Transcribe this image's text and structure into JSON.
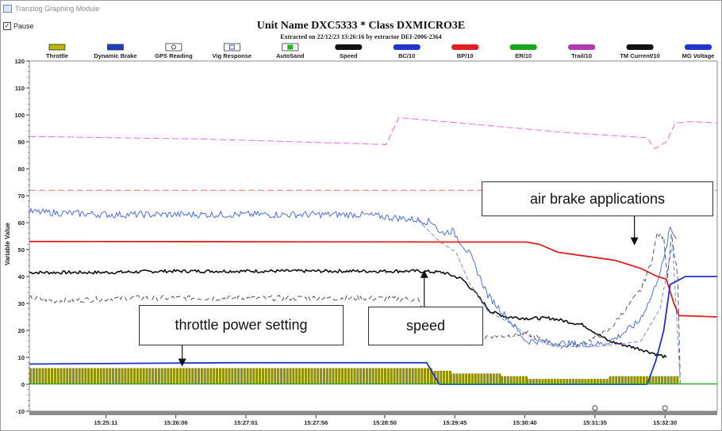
{
  "window": {
    "title": "Tranzlog Graphing Module",
    "pause_label": "Pause",
    "pause_checked": "✓"
  },
  "chart_data": {
    "type": "line",
    "title": "Unit Name DXC5333  * Class  DXMICRO3E",
    "subtitle": "Extracted on 22/12/23 13:26:16  by extractor DEI-2006-2364",
    "ylabel": "Variable Value",
    "xlabel": "",
    "ylim": [
      -10,
      120
    ],
    "yticks": [
      "-10",
      "0",
      "10",
      "20",
      "30",
      "40",
      "50",
      "60",
      "70",
      "80",
      "90",
      "100",
      "110",
      "120"
    ],
    "xticks": [
      "15:25:11",
      "15:26:06",
      "15:27:01",
      "15:27:56",
      "15:28:50",
      "15:29:45",
      "15:30:40",
      "15:31:35",
      "15:32:30"
    ],
    "xtick_seconds": [
      0,
      55,
      110,
      165,
      219,
      274,
      329,
      384,
      439
    ],
    "xlim_seconds": [
      -60,
      480
    ],
    "grid": "horizontal",
    "legend_position": "top",
    "legend": [
      {
        "name": "Throttle",
        "color": "#b8b800",
        "kind": "bar"
      },
      {
        "name": "Dynamic Brake",
        "color": "#1f3fbf",
        "kind": "bar"
      },
      {
        "name": "GPS Reading",
        "color": "#444444",
        "kind": "circle"
      },
      {
        "name": "Vig Response",
        "color": "#3a5bd9",
        "kind": "square"
      },
      {
        "name": "AutoSand",
        "color": "#1db51d",
        "kind": "square"
      },
      {
        "name": "Speed",
        "color": "#111111",
        "kind": "line"
      },
      {
        "name": "BC/10",
        "color": "#2233cc",
        "kind": "line"
      },
      {
        "name": "BP/10",
        "color": "#e02020",
        "kind": "line"
      },
      {
        "name": "ER/10",
        "color": "#1aa61a",
        "kind": "line"
      },
      {
        "name": "Trail/10",
        "color": "#b03ab0",
        "kind": "line"
      },
      {
        "name": "TM Current/10",
        "color": "#111111",
        "kind": "line"
      },
      {
        "name": "MG Voltage",
        "color": "#2233cc",
        "kind": "line"
      }
    ],
    "series": [
      {
        "name": "Speed",
        "color": "#111111",
        "dash": "",
        "width": 1.6,
        "noise": 0.6,
        "x": [
          -60,
          0,
          50,
          100,
          150,
          200,
          245,
          265,
          280,
          290,
          302,
          315,
          330,
          350,
          375,
          395,
          420,
          440
        ],
        "y": [
          41.5,
          41.5,
          42,
          42,
          42,
          42,
          42,
          41.5,
          39,
          34,
          27,
          25,
          24.5,
          24.5,
          22,
          16,
          13,
          10
        ]
      },
      {
        "name": "TM Current/10",
        "color": "#555555",
        "dash": "6,4",
        "width": 1,
        "noise": 1.0,
        "x": [
          -60,
          -40,
          20,
          80,
          140,
          200,
          245,
          250,
          262,
          265,
          272,
          276,
          290,
          300,
          315,
          330,
          355,
          375,
          395,
          420,
          428,
          433,
          438,
          441,
          444,
          449,
          451
        ],
        "y": [
          32,
          31,
          32,
          32,
          32,
          32,
          31.5,
          26,
          23,
          18,
          20,
          16,
          15,
          18,
          18,
          19,
          14,
          15,
          20,
          35,
          45,
          56,
          54,
          40,
          56,
          40,
          0
        ]
      },
      {
        "name": "Vig Response",
        "color": "#4a6ff0",
        "dash": "",
        "width": 1,
        "noise": 1.3,
        "x": [
          -60,
          0,
          100,
          200,
          245,
          258,
          262,
          272,
          286,
          300,
          320,
          330,
          340,
          360,
          380,
          390,
          400,
          418,
          428,
          438,
          443,
          448
        ],
        "y": [
          64,
          63,
          63,
          63,
          61,
          60,
          56,
          57,
          48,
          33,
          22,
          16,
          16,
          15,
          15,
          15,
          17,
          23,
          32,
          46,
          58,
          54
        ]
      },
      {
        "name": "Vig Response (dashed)",
        "color": "#6f8df5",
        "dash": "5,3",
        "width": 1,
        "noise": 0,
        "x": [
          245,
          262,
          275,
          285,
          300,
          320,
          335,
          345,
          360,
          385,
          405,
          420,
          435,
          445,
          451
        ],
        "y": [
          61,
          53,
          49,
          38,
          27,
          22,
          17,
          15,
          14,
          14,
          15,
          16,
          28,
          52,
          0
        ]
      },
      {
        "name": "Trail/10",
        "color": "#ee66ee",
        "dash": "8,4",
        "width": 1,
        "noise": 0,
        "x": [
          -60,
          80,
          220,
          230,
          360,
          425,
          431,
          440,
          447,
          460,
          480
        ],
        "y": [
          92,
          91,
          89,
          99,
          93.5,
          91.5,
          87.5,
          90,
          97,
          97.5,
          97
        ]
      },
      {
        "name": "ER/10",
        "color": "#e86868",
        "dash": "8,4",
        "width": 1,
        "noise": 0,
        "x": [
          -60,
          480
        ],
        "y": [
          72,
          72
        ]
      },
      {
        "name": "BP/10",
        "color": "#e02020",
        "dash": "",
        "width": 1.8,
        "noise": 0,
        "x": [
          -60,
          300,
          330,
          340,
          355,
          370,
          385,
          400,
          420,
          433,
          440,
          446,
          450,
          480
        ],
        "y": [
          53,
          52.8,
          52.8,
          52,
          49,
          48,
          47,
          46,
          43,
          40,
          39,
          30,
          25.5,
          25
        ]
      },
      {
        "name": "MG Voltage",
        "color": "#2233cc",
        "dash": "",
        "width": 1.8,
        "noise": 0,
        "x": [
          -60,
          100,
          200,
          252,
          258,
          262,
          425,
          432,
          438,
          443,
          455,
          470,
          480
        ],
        "y": [
          7.5,
          8,
          8,
          8,
          3,
          0,
          0,
          9,
          20,
          37,
          40,
          40,
          40
        ]
      },
      {
        "name": "AutoSand",
        "color": "#1db51d",
        "dash": "",
        "width": 1.2,
        "noise": 0,
        "x": [
          -60,
          480
        ],
        "y": [
          0.2,
          0.2
        ]
      }
    ],
    "throttle_bars": {
      "color": "#8f8f00",
      "segments": [
        {
          "x": [
            -60,
            255
          ],
          "value": 6
        },
        {
          "x": [
            255,
            270
          ],
          "value": 5
        },
        {
          "x": [
            270,
            310
          ],
          "value": 4
        },
        {
          "x": [
            310,
            330
          ],
          "value": 3
        },
        {
          "x": [
            330,
            395
          ],
          "value": 2
        },
        {
          "x": [
            395,
            450
          ],
          "value": 3
        }
      ]
    },
    "gps_markers": [
      384,
      439
    ]
  },
  "annotations": [
    {
      "id": "air-brake-applications",
      "text": "air brake applications",
      "arrow_x": 415,
      "arrow_y": 51
    },
    {
      "id": "speed",
      "text": "speed",
      "arrow_x": 250,
      "arrow_y": 43
    },
    {
      "id": "throttle-power-setting",
      "text": "throttle power setting",
      "arrow_x": 60,
      "arrow_y": 6
    }
  ]
}
